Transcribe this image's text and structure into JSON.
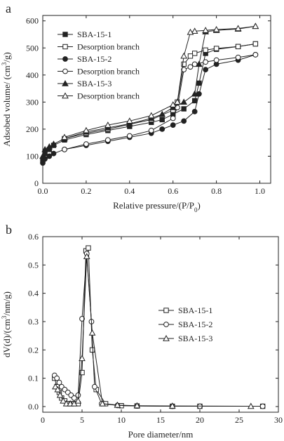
{
  "chart_data": [
    {
      "type": "line",
      "panel": "a",
      "xlabel": "Relative pressure/(P/P",
      "xlabel_sub": "0",
      "xlabel_end": ")",
      "ylabel": "Adsobed volume/ (cm",
      "ylabel_sup": "3",
      "ylabel_end": "/g)",
      "xlim": [
        0,
        1.05
      ],
      "ylim": [
        0,
        620
      ],
      "xticks": [
        0.0,
        0.2,
        0.4,
        0.6,
        0.8,
        1.0
      ],
      "xtick_labels": [
        "0.0",
        "0.2",
        "0.4",
        "0.6",
        "0.8",
        "1.0"
      ],
      "yticks": [
        0,
        100,
        200,
        300,
        400,
        500,
        600
      ],
      "ytick_labels": [
        "0",
        "100",
        "200",
        "300",
        "400",
        "500",
        "600"
      ],
      "legend_position": "top-left",
      "series": [
        {
          "name": "SBA-15-1",
          "marker": "square-filled",
          "x": [
            0.0,
            0.01,
            0.03,
            0.05,
            0.1,
            0.2,
            0.3,
            0.4,
            0.5,
            0.55,
            0.6,
            0.65,
            0.7,
            0.72,
            0.75,
            0.8,
            0.9,
            0.98
          ],
          "y": [
            85,
            110,
            125,
            140,
            160,
            180,
            195,
            210,
            225,
            235,
            255,
            275,
            305,
            370,
            480,
            495,
            505,
            515
          ]
        },
        {
          "name": "Desorption branch",
          "marker": "square-open",
          "x": [
            0.98,
            0.9,
            0.8,
            0.75,
            0.7,
            0.68,
            0.65,
            0.62,
            0.6,
            0.5,
            0.4,
            0.3,
            0.2,
            0.1
          ],
          "y": [
            515,
            505,
            498,
            492,
            480,
            470,
            440,
            300,
            270,
            235,
            218,
            200,
            185,
            165
          ]
        },
        {
          "name": "SBA-15-2",
          "marker": "circle-filled",
          "x": [
            0.0,
            0.01,
            0.03,
            0.05,
            0.1,
            0.2,
            0.3,
            0.4,
            0.5,
            0.55,
            0.6,
            0.65,
            0.7,
            0.72,
            0.75,
            0.8,
            0.9,
            0.98
          ],
          "y": [
            75,
            90,
            100,
            110,
            125,
            140,
            155,
            170,
            185,
            200,
            215,
            230,
            265,
            330,
            420,
            440,
            455,
            475
          ]
        },
        {
          "name": "Desorption branch",
          "marker": "circle-open",
          "x": [
            0.98,
            0.9,
            0.8,
            0.75,
            0.7,
            0.68,
            0.65,
            0.62,
            0.6,
            0.5,
            0.4,
            0.3,
            0.2,
            0.1
          ],
          "y": [
            475,
            465,
            455,
            448,
            440,
            430,
            420,
            280,
            240,
            195,
            175,
            160,
            145,
            125
          ]
        },
        {
          "name": "SBA-15-3",
          "marker": "triangle-filled",
          "x": [
            0.0,
            0.01,
            0.03,
            0.05,
            0.1,
            0.2,
            0.3,
            0.4,
            0.5,
            0.55,
            0.6,
            0.65,
            0.7,
            0.72,
            0.75,
            0.8,
            0.9,
            0.98
          ],
          "y": [
            100,
            125,
            135,
            145,
            165,
            190,
            205,
            220,
            240,
            255,
            280,
            300,
            330,
            440,
            560,
            565,
            570,
            580
          ]
        },
        {
          "name": "Desorption branch",
          "marker": "triangle-open",
          "x": [
            0.98,
            0.9,
            0.8,
            0.75,
            0.7,
            0.68,
            0.65,
            0.62,
            0.6,
            0.5,
            0.4,
            0.3,
            0.2,
            0.1
          ],
          "y": [
            580,
            572,
            568,
            565,
            562,
            558,
            470,
            300,
            290,
            250,
            230,
            215,
            195,
            170
          ]
        }
      ]
    },
    {
      "type": "line",
      "panel": "b",
      "xlabel": "Pore diameter/nm",
      "ylabel": "dV(d)/(cm",
      "ylabel_sup": "3",
      "ylabel_end": "/nm/g)",
      "xlim": [
        0,
        30
      ],
      "ylim": [
        -0.02,
        0.6
      ],
      "xticks": [
        0,
        5,
        10,
        15,
        20,
        25,
        30
      ],
      "xtick_labels": [
        "0",
        "5",
        "10",
        "15",
        "20",
        "25",
        "30"
      ],
      "yticks": [
        0.0,
        0.1,
        0.2,
        0.3,
        0.4,
        0.5,
        0.6
      ],
      "ytick_labels": [
        "0.0",
        "0.1",
        "0.2",
        "0.3",
        "0.4",
        "0.5",
        "0.6"
      ],
      "legend_position": "center-right",
      "series": [
        {
          "name": "SBA-15-1",
          "marker": "square-open",
          "x": [
            1.5,
            1.8,
            2.1,
            2.4,
            2.8,
            3.2,
            3.6,
            4.0,
            4.5,
            5.0,
            5.5,
            5.8,
            6.3,
            6.8,
            8.0,
            10.0,
            12.0,
            16.5,
            20.0,
            28.0
          ],
          "y": [
            0.1,
            0.07,
            0.05,
            0.03,
            0.02,
            0.01,
            0.01,
            0.01,
            0.01,
            0.12,
            0.55,
            0.56,
            0.2,
            0.06,
            0.01,
            0.003,
            0.002,
            0.001,
            0.001,
            0.001
          ]
        },
        {
          "name": "SBA-15-2",
          "marker": "circle-open",
          "x": [
            1.5,
            1.8,
            2.1,
            2.4,
            2.8,
            3.2,
            3.6,
            4.0,
            4.5,
            5.0,
            5.6,
            6.2,
            6.6,
            7.5,
            9.5,
            12.0,
            16.5,
            20.0,
            28.0
          ],
          "y": [
            0.11,
            0.1,
            0.085,
            0.07,
            0.06,
            0.05,
            0.04,
            0.03,
            0.04,
            0.31,
            0.54,
            0.3,
            0.07,
            0.01,
            0.004,
            0.002,
            0.001,
            0.001,
            0.001
          ]
        },
        {
          "name": "SBA-15-3",
          "marker": "triangle-open",
          "x": [
            1.6,
            1.9,
            2.2,
            2.6,
            3.0,
            3.5,
            4.0,
            4.5,
            5.0,
            5.6,
            6.3,
            7.6,
            9.5,
            12.0,
            16.5,
            26.5
          ],
          "y": [
            0.07,
            0.06,
            0.04,
            0.02,
            0.01,
            0.01,
            0.01,
            0.02,
            0.17,
            0.53,
            0.26,
            0.01,
            0.005,
            0.003,
            0.002,
            0.001
          ]
        }
      ]
    }
  ]
}
